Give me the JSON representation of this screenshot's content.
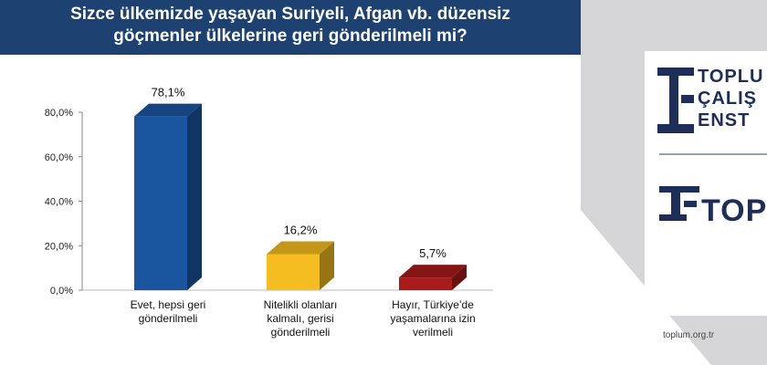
{
  "header": {
    "line1": "Sizce ülkemizde yaşayan Suriyeli, Afgan vb. düzensiz",
    "line2": "göçmenler ülkelerine geri gönderilmeli mi?"
  },
  "brand": {
    "line1": "TOPLU",
    "line2": "ÇALIŞ",
    "line3": "ENST",
    "short": "TOPL",
    "website": "toplum.org.tr",
    "color": "#1d2f59"
  },
  "chart_data": {
    "type": "bar",
    "categories": [
      [
        "Evet, hepsi geri",
        "gönderilmeli"
      ],
      [
        "Nitelikli olanları",
        "kalmalı, gerisi",
        "gönderilmeli"
      ],
      [
        "Hayır, Türkiye’de",
        "yaşamalarına izin",
        "verilmeli"
      ]
    ],
    "values": [
      78.1,
      16.2,
      5.7
    ],
    "value_labels": [
      "78,1%",
      "16,2%",
      "5,7%"
    ],
    "colors": [
      "#1a55a0",
      "#f5bd1f",
      "#a81c1c"
    ],
    "yticks": [
      "0,0%",
      "20,0%",
      "40,0%",
      "60,0%",
      "80,0%"
    ],
    "ylim": [
      0,
      80
    ],
    "grid": false,
    "legend": "none",
    "style": "3d"
  }
}
